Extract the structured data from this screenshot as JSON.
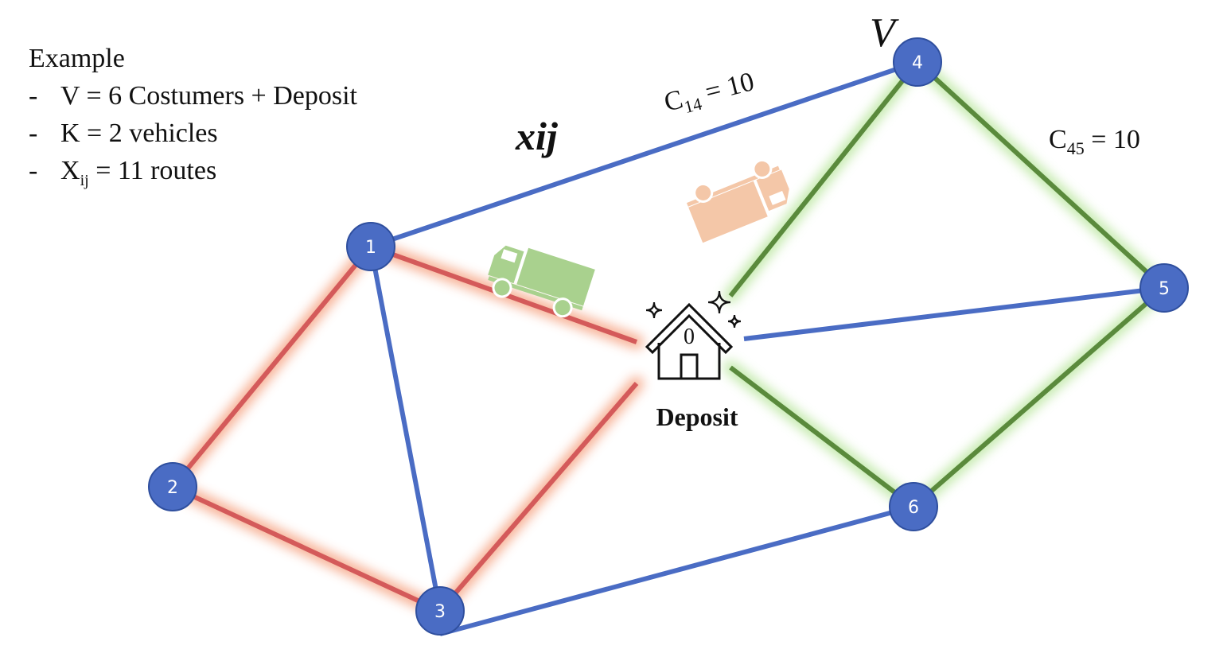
{
  "legend": {
    "title": "Example",
    "items": [
      {
        "dash": "-",
        "text": "V = 6 Costumers + Deposit"
      },
      {
        "dash": "-",
        "text": "K = 2 vehicles"
      },
      {
        "dash": "-",
        "pre": "X",
        "sub": "ij",
        "post": " = 11 routes"
      }
    ]
  },
  "labels": {
    "xij": "xij",
    "v": "V",
    "c14_main": "C",
    "c14_sub": "14",
    "c14_rest": " = 10",
    "c45_main": "C",
    "c45_sub": "45",
    "c45_rest": " = 10",
    "deposit_number": "0",
    "deposit_label": "Deposit"
  },
  "nodes": [
    {
      "id": "1",
      "label": "1"
    },
    {
      "id": "2",
      "label": "2"
    },
    {
      "id": "3",
      "label": "3"
    },
    {
      "id": "4",
      "label": "4"
    },
    {
      "id": "5",
      "label": "5"
    },
    {
      "id": "6",
      "label": "6"
    }
  ],
  "edges": [
    {
      "from": "1",
      "to": "4",
      "route": "blue"
    },
    {
      "from": "1",
      "to": "3",
      "route": "blue"
    },
    {
      "from": "0",
      "to": "5",
      "route": "blue"
    },
    {
      "from": "3",
      "to": "6",
      "route": "blue"
    },
    {
      "from": "1",
      "to": "2",
      "route": "red"
    },
    {
      "from": "2",
      "to": "3",
      "route": "red"
    },
    {
      "from": "3",
      "to": "0",
      "route": "red"
    },
    {
      "from": "1",
      "to": "0",
      "route": "red"
    },
    {
      "from": "0",
      "to": "4",
      "route": "green"
    },
    {
      "from": "4",
      "to": "5",
      "route": "green"
    },
    {
      "from": "5",
      "to": "6",
      "route": "green"
    },
    {
      "from": "6",
      "to": "0",
      "route": "green"
    }
  ],
  "colors": {
    "node": "#4a6cc4",
    "blue": "#4a6cc4",
    "red": "#d45a5a",
    "green": "#5a8a3c",
    "truck_green": "#a9d18e",
    "truck_orange": "#f4c7a8"
  },
  "icons": [
    "house-icon",
    "truck-green-icon",
    "truck-orange-icon",
    "sparkle-icon"
  ]
}
